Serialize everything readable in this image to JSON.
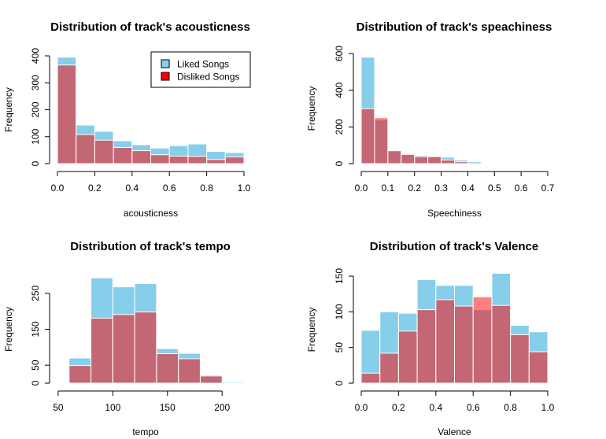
{
  "chart_data": [
    {
      "type": "histogram",
      "title": "Distribution of track's acousticness",
      "xlabel": "acousticness",
      "ylabel": "Frequency",
      "xlim": [
        0,
        1
      ],
      "ylim": [
        0,
        400
      ],
      "xticks": [
        "0.0",
        "0.2",
        "0.4",
        "0.6",
        "0.8",
        "1.0"
      ],
      "yticks": [
        "0",
        "100",
        "200",
        "300",
        "400"
      ],
      "bins": [
        0,
        0.1,
        0.2,
        0.3,
        0.4,
        0.5,
        0.6,
        0.7,
        0.8,
        0.9,
        1.0
      ],
      "series": [
        {
          "name": "Liked Songs",
          "values": [
            395,
            143,
            120,
            85,
            70,
            58,
            67,
            73,
            45,
            41
          ]
        },
        {
          "name": "Disliked Songs",
          "values": [
            366,
            108,
            87,
            60,
            48,
            33,
            28,
            27,
            15,
            25
          ]
        }
      ],
      "legend": {
        "position": "top-right",
        "items": [
          "Liked Songs",
          "Disliked Songs"
        ]
      }
    },
    {
      "type": "histogram",
      "title": "Distribution of track's speachiness",
      "xlabel": "Speechiness",
      "ylabel": "Frequency",
      "xlim": [
        0,
        0.7
      ],
      "ylim": [
        0,
        600
      ],
      "xticks": [
        "0.0",
        "0.1",
        "0.2",
        "0.3",
        "0.4",
        "0.5",
        "0.6",
        "0.7"
      ],
      "yticks": [
        "0",
        "200",
        "400",
        "600"
      ],
      "bins": [
        0,
        0.05,
        0.1,
        0.15,
        0.2,
        0.25,
        0.3,
        0.35,
        0.4,
        0.45
      ],
      "series": [
        {
          "name": "Liked Songs",
          "values": [
            580,
            238,
            72,
            55,
            45,
            40,
            35,
            20,
            10
          ]
        },
        {
          "name": "Disliked Songs",
          "values": [
            300,
            250,
            70,
            50,
            38,
            38,
            20,
            10,
            0
          ]
        }
      ]
    },
    {
      "type": "histogram",
      "title": "Distribution of track's tempo",
      "xlabel": "tempo",
      "ylabel": "Frequency",
      "xlim": [
        40,
        220
      ],
      "ylim": [
        0,
        300
      ],
      "xticks": [
        "50",
        "100",
        "150",
        "200"
      ],
      "yticks": [
        "0",
        "50",
        "150",
        "250"
      ],
      "bins": [
        60,
        80,
        100,
        120,
        140,
        160,
        180,
        200,
        220
      ],
      "series": [
        {
          "name": "Liked Songs",
          "values": [
            70,
            293,
            268,
            277,
            96,
            83,
            23,
            3
          ]
        },
        {
          "name": "Disliked Songs",
          "values": [
            49,
            181,
            191,
            198,
            82,
            68,
            20,
            0
          ]
        }
      ]
    },
    {
      "type": "histogram",
      "title": "Distribution of track's Valence",
      "xlabel": "Valence",
      "ylabel": "Frequency",
      "xlim": [
        0,
        1
      ],
      "ylim": [
        0,
        150
      ],
      "xticks": [
        "0.0",
        "0.2",
        "0.4",
        "0.6",
        "0.8",
        "1.0"
      ],
      "yticks": [
        "0",
        "50",
        "100",
        "150"
      ],
      "bins": [
        0,
        0.1,
        0.2,
        0.3,
        0.4,
        0.5,
        0.6,
        0.7,
        0.8,
        0.9,
        1.0
      ],
      "series": [
        {
          "name": "Liked Songs",
          "values": [
            74,
            100,
            98,
            145,
            137,
            137,
            103,
            154,
            81,
            72
          ]
        },
        {
          "name": "Disliked Songs",
          "values": [
            14,
            42,
            73,
            103,
            117,
            108,
            121,
            109,
            68,
            44
          ]
        }
      ]
    }
  ],
  "colors": {
    "liked": "#87ceeb",
    "disliked": "#ff0000",
    "disliked_alpha": 0.5
  }
}
